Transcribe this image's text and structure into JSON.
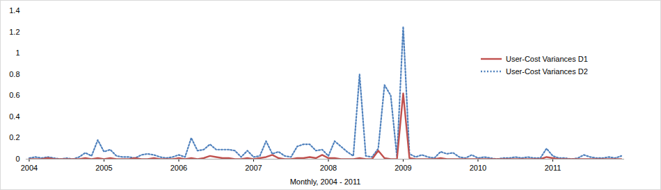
{
  "chart_data": {
    "type": "line",
    "x_label": "Monthly, 2004 - 2011",
    "categories": [
      "2004",
      null,
      null,
      null,
      null,
      null,
      null,
      null,
      null,
      null,
      null,
      null,
      "2005",
      null,
      null,
      null,
      null,
      null,
      null,
      null,
      null,
      null,
      null,
      null,
      "2006",
      null,
      null,
      null,
      null,
      null,
      null,
      null,
      null,
      null,
      null,
      null,
      "2007",
      null,
      null,
      null,
      null,
      null,
      null,
      null,
      null,
      null,
      null,
      null,
      "2008",
      null,
      null,
      null,
      null,
      null,
      null,
      null,
      null,
      null,
      null,
      null,
      "2009",
      null,
      null,
      null,
      null,
      null,
      null,
      null,
      null,
      null,
      null,
      null,
      "2010",
      null,
      null,
      null,
      null,
      null,
      null,
      null,
      null,
      null,
      null,
      null,
      "2011",
      null,
      null,
      null,
      null,
      null,
      null,
      null,
      null,
      null,
      null,
      null
    ],
    "series": [
      {
        "name": "User-Cost Variances D1",
        "color": "#c0504d",
        "line_style": "solid",
        "values": [
          0.0,
          0.0,
          0.0,
          0.01,
          0.0,
          0.0,
          0.0,
          0.0,
          0.0,
          0.01,
          0.0,
          0.01,
          0.0,
          0.01,
          0.0,
          0.0,
          0.0,
          0.01,
          0.0,
          0.0,
          0.01,
          0.0,
          0.0,
          0.0,
          0.01,
          0.0,
          0.01,
          0.0,
          0.01,
          0.03,
          0.02,
          0.01,
          0.01,
          0.0,
          0.0,
          0.01,
          0.0,
          0.01,
          0.02,
          0.04,
          0.01,
          0.0,
          0.0,
          0.01,
          0.01,
          0.02,
          0.01,
          0.04,
          0.01,
          0.01,
          0.0,
          0.0,
          0.0,
          0.01,
          0.0,
          0.0,
          0.08,
          0.01,
          0.0,
          0.0,
          0.62,
          0.01,
          0.0,
          0.0,
          0.0,
          0.0,
          0.01,
          0.0,
          0.0,
          0.0,
          0.0,
          0.0,
          0.0,
          0.0,
          0.0,
          0.0,
          0.0,
          0.0,
          0.0,
          0.0,
          0.0,
          0.0,
          0.0,
          0.02,
          0.01,
          0.0,
          0.0,
          0.0,
          0.0,
          0.0,
          0.0,
          0.0,
          0.0,
          0.0,
          0.0,
          0.0
        ]
      },
      {
        "name": "User-Cost Variances D2",
        "color": "#4f81bd",
        "line_style": "dotted",
        "values": [
          0.01,
          0.02,
          0.01,
          0.02,
          0.01,
          0.0,
          0.01,
          0.0,
          0.02,
          0.06,
          0.03,
          0.18,
          0.07,
          0.09,
          0.03,
          0.02,
          0.02,
          0.01,
          0.04,
          0.05,
          0.04,
          0.02,
          0.01,
          0.02,
          0.04,
          0.02,
          0.2,
          0.08,
          0.09,
          0.14,
          0.09,
          0.09,
          0.09,
          0.08,
          0.02,
          0.08,
          0.02,
          0.03,
          0.17,
          0.05,
          0.07,
          0.03,
          0.02,
          0.12,
          0.14,
          0.14,
          0.08,
          0.09,
          0.03,
          0.17,
          0.12,
          0.07,
          0.03,
          0.8,
          0.03,
          0.02,
          0.1,
          0.7,
          0.6,
          0.02,
          1.25,
          0.05,
          0.02,
          0.04,
          0.02,
          0.01,
          0.07,
          0.05,
          0.06,
          0.02,
          0.01,
          0.04,
          0.01,
          0.02,
          0.01,
          0.0,
          0.01,
          0.01,
          0.02,
          0.01,
          0.02,
          0.01,
          0.01,
          0.1,
          0.03,
          0.01,
          0.01,
          0.0,
          0.01,
          0.04,
          0.02,
          0.01,
          0.01,
          0.02,
          0.01,
          0.03
        ]
      }
    ],
    "ylim": [
      0,
      1.4
    ],
    "yticks": [
      0,
      0.2,
      0.4,
      0.6,
      0.8,
      1,
      1.2,
      1.4
    ],
    "grid": false,
    "legend": "right"
  }
}
